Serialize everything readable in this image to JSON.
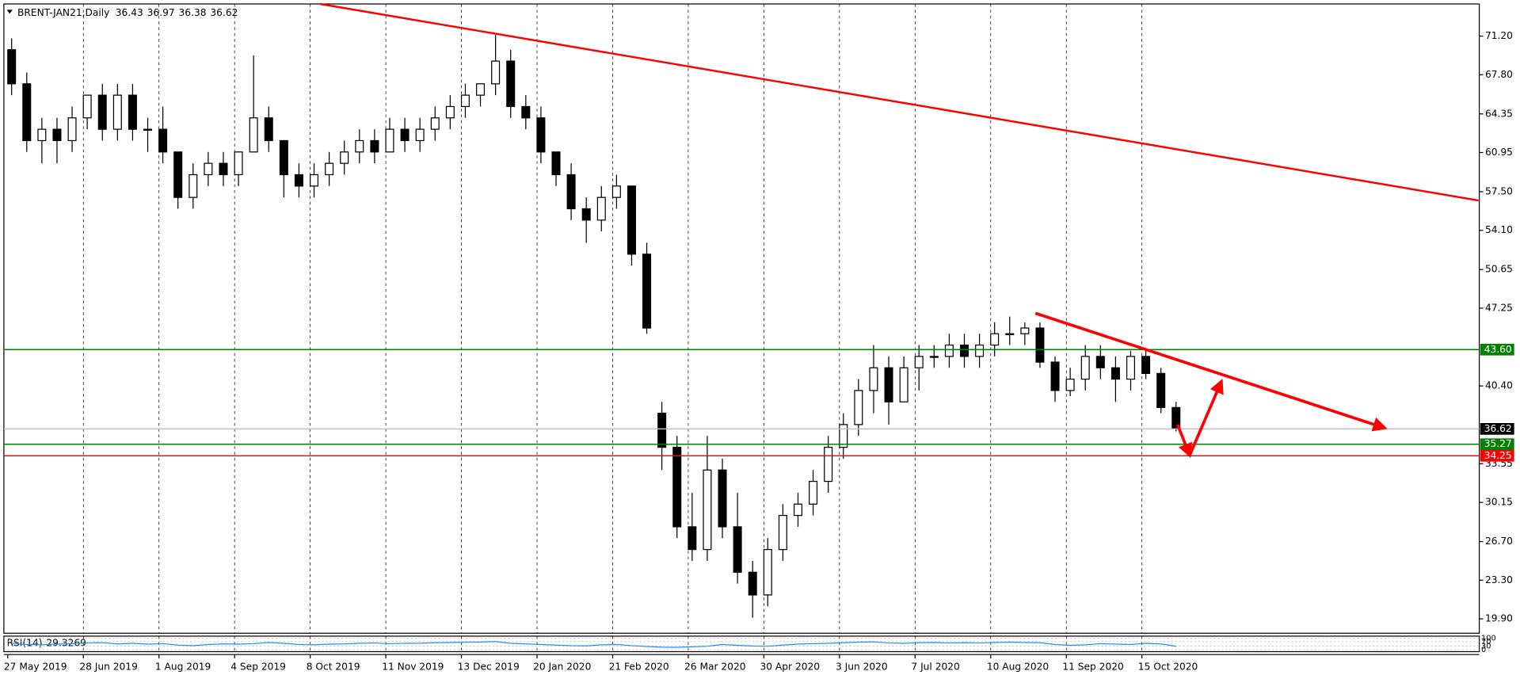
{
  "chart_data": {
    "type": "candlestick",
    "title": "BRENT-JAN21,Daily",
    "header_values": [
      36.43,
      36.97,
      36.38,
      36.62
    ],
    "bull_color": "#ffffff",
    "bear_color": "#000000",
    "categories": [
      "27 May 2019",
      null,
      null,
      null,
      null,
      "28 Jun 2019",
      null,
      null,
      null,
      null,
      "1 Aug 2019",
      null,
      null,
      null,
      null,
      "4 Sep 2019",
      null,
      null,
      null,
      null,
      "8 Oct 2019",
      null,
      null,
      null,
      null,
      "11 Nov 2019",
      null,
      null,
      null,
      null,
      "13 Dec 2019",
      null,
      null,
      null,
      null,
      "20 Jan 2020",
      null,
      null,
      null,
      null,
      "21 Feb 2020",
      null,
      null,
      null,
      null,
      "26 Mar 2020",
      null,
      null,
      null,
      null,
      "30 Apr 2020",
      null,
      null,
      null,
      null,
      "3 Jun 2020",
      null,
      null,
      null,
      null,
      "7 Jul 2020",
      null,
      null,
      null,
      null,
      "10 Aug 2020",
      null,
      null,
      null,
      null,
      "11 Sep 2020",
      null,
      null,
      null,
      null,
      "15 Oct 2020",
      null,
      null
    ],
    "ohlc": [
      [
        70,
        71,
        66,
        67
      ],
      [
        67,
        68,
        61,
        62
      ],
      [
        62,
        64,
        60,
        63
      ],
      [
        63,
        64,
        60,
        62
      ],
      [
        62,
        65,
        61,
        64
      ],
      [
        64,
        66,
        63,
        66
      ],
      [
        66,
        67,
        62,
        63
      ],
      [
        63,
        67,
        62,
        66
      ],
      [
        66,
        67,
        62,
        63
      ],
      [
        63,
        64,
        61,
        63
      ],
      [
        63,
        65,
        60,
        61
      ],
      [
        61,
        61,
        56,
        57
      ],
      [
        57,
        60,
        56,
        59
      ],
      [
        59,
        61,
        58,
        60
      ],
      [
        60,
        61,
        58,
        59
      ],
      [
        59,
        61,
        58,
        61
      ],
      [
        61,
        69.5,
        61,
        64
      ],
      [
        64,
        65,
        61,
        62
      ],
      [
        62,
        62,
        57,
        59
      ],
      [
        59,
        60,
        57,
        58
      ],
      [
        58,
        60,
        57,
        59
      ],
      [
        59,
        61,
        58,
        60
      ],
      [
        60,
        62,
        59,
        61
      ],
      [
        61,
        63,
        60,
        62
      ],
      [
        62,
        63,
        60,
        61
      ],
      [
        61,
        64,
        61,
        63
      ],
      [
        63,
        64,
        61,
        62
      ],
      [
        62,
        64,
        61,
        63
      ],
      [
        63,
        65,
        62,
        64
      ],
      [
        64,
        66,
        63,
        65
      ],
      [
        65,
        67,
        64,
        66
      ],
      [
        66,
        67,
        65,
        67
      ],
      [
        67,
        71.3,
        66,
        69
      ],
      [
        69,
        70,
        64,
        65
      ],
      [
        65,
        66,
        63,
        64
      ],
      [
        64,
        65,
        60,
        61
      ],
      [
        61,
        61,
        58,
        59
      ],
      [
        59,
        60,
        55,
        56
      ],
      [
        56,
        57,
        53,
        55
      ],
      [
        55,
        58,
        54,
        57
      ],
      [
        57,
        59,
        56,
        58
      ],
      [
        58,
        58,
        51,
        52
      ],
      [
        52,
        53,
        45,
        45.5
      ],
      [
        38,
        39,
        33,
        35
      ],
      [
        35,
        36,
        27,
        28
      ],
      [
        28,
        31,
        25,
        26
      ],
      [
        26,
        36,
        25,
        33
      ],
      [
        33,
        34,
        27,
        28
      ],
      [
        28,
        31,
        23,
        24
      ],
      [
        24,
        25,
        20,
        22
      ],
      [
        22,
        27,
        21,
        26
      ],
      [
        26,
        30,
        25,
        29
      ],
      [
        29,
        31,
        28,
        30
      ],
      [
        30,
        33,
        29,
        32
      ],
      [
        32,
        36,
        31,
        35
      ],
      [
        35,
        38,
        34,
        37
      ],
      [
        37,
        41,
        36,
        40
      ],
      [
        40,
        44,
        38,
        42
      ],
      [
        42,
        43,
        37,
        39
      ],
      [
        39,
        43,
        39,
        42
      ],
      [
        42,
        44,
        40,
        43
      ],
      [
        43,
        44,
        42,
        43
      ],
      [
        43,
        45,
        42,
        44
      ],
      [
        44,
        45,
        42,
        43
      ],
      [
        43,
        45,
        42,
        44
      ],
      [
        44,
        46,
        43,
        45
      ],
      [
        45,
        46.5,
        44,
        45
      ],
      [
        45,
        46,
        44,
        45.5
      ],
      [
        45.5,
        46,
        42,
        42.5
      ],
      [
        42.5,
        43,
        39,
        40
      ],
      [
        40,
        42,
        39.5,
        41
      ],
      [
        41,
        44,
        40,
        43
      ],
      [
        43,
        44,
        41,
        42
      ],
      [
        42,
        43,
        39,
        41
      ],
      [
        41,
        43.5,
        40,
        43
      ],
      [
        43,
        43.5,
        41,
        41.5
      ],
      [
        41.5,
        42,
        38,
        38.5
      ],
      [
        38.5,
        39,
        36.4,
        36.62
      ]
    ],
    "ylim": [
      18.63,
      74.03
    ],
    "yticks": [
      {
        "value": 71.2,
        "label": "71.20"
      },
      {
        "value": 67.8,
        "label": "67.80"
      },
      64.35,
      60.95,
      {
        "value": 57.5,
        "label": "57.50"
      },
      {
        "value": 54.1,
        "label": "54.10"
      },
      50.65,
      47.25,
      {
        "value": 40.4,
        "label": "40.40"
      },
      33.55,
      30.15,
      {
        "value": 26.7,
        "label": "26.70"
      },
      {
        "value": 23.3,
        "label": "23.30"
      },
      {
        "value": 19.9,
        "label": "19.90"
      }
    ],
    "grid": true,
    "levels": [
      {
        "value": 43.6,
        "label": "43.60",
        "color": "#008000"
      },
      {
        "value": 36.62,
        "label": "36.62",
        "color": "#000000",
        "line_color": "#c0c0c0"
      },
      {
        "value": 35.27,
        "label": "35.27",
        "color": "#008000"
      },
      {
        "value": 34.25,
        "label": "34.25",
        "color": "#ff0000"
      }
    ],
    "trendlines": [
      {
        "color": "#ff0000",
        "arrow": false,
        "points": [
          [
            20.4,
            74.03
          ],
          [
            97,
            56.73
          ]
        ]
      },
      {
        "color": "#ff0000",
        "arrow": true,
        "points": [
          [
            67.7,
            46.8
          ],
          [
            90.8,
            36.7
          ]
        ]
      },
      {
        "color": "#ff0000",
        "arrow": true,
        "points": [
          [
            77.1,
            37.0
          ],
          [
            77.9,
            34.3
          ]
        ]
      },
      {
        "color": "#ff0000",
        "arrow": true,
        "points": [
          [
            77.9,
            34.3
          ],
          [
            80.0,
            40.8
          ]
        ]
      }
    ],
    "rsi": {
      "label": "RSI(14)",
      "color": "#1e90ff",
      "ylim": [
        0,
        100
      ],
      "yticks": [
        0,
        30,
        70,
        100
      ],
      "values": [
        55,
        45,
        42,
        48,
        52,
        58,
        60,
        50,
        55,
        48,
        52,
        40,
        35,
        45,
        50,
        48,
        52,
        62,
        55,
        45,
        42,
        48,
        50,
        55,
        58,
        52,
        55,
        56,
        60,
        62,
        65,
        66,
        70,
        55,
        50,
        45,
        40,
        35,
        33,
        42,
        45,
        35,
        28,
        22,
        20,
        25,
        30,
        45,
        38,
        32,
        30,
        40,
        48,
        52,
        55,
        60,
        65,
        68,
        58,
        55,
        60,
        62,
        58,
        60,
        58,
        62,
        65,
        62,
        60,
        45,
        38,
        42,
        52,
        48,
        45,
        55,
        50,
        29.3269
      ]
    }
  }
}
